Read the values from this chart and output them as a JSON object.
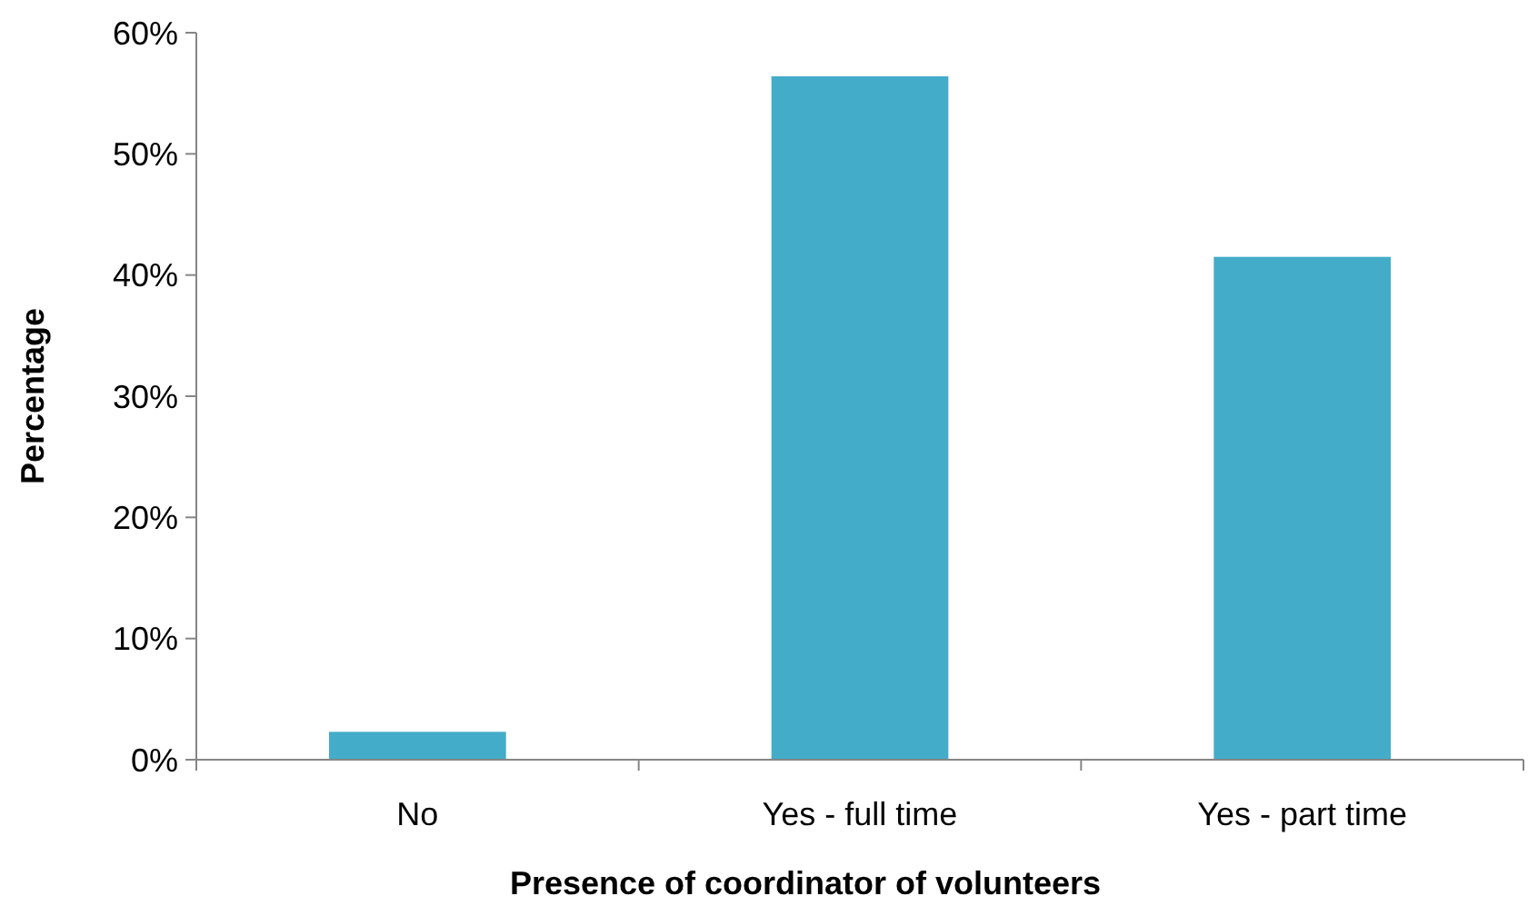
{
  "chart_data": {
    "type": "bar",
    "xlabel": "Presence of coordinator  of volunteers",
    "ylabel": "Percentage",
    "categories": [
      "No",
      "Yes - full time",
      "Yes - part time"
    ],
    "values": [
      2.3,
      56.4,
      41.5
    ],
    "color": "#43acc9",
    "ylim": [
      0,
      60
    ],
    "yticks": [
      {
        "value": 0,
        "label": "0%"
      },
      {
        "value": 10,
        "label": "10%"
      },
      {
        "value": 20,
        "label": "20%"
      },
      {
        "value": 30,
        "label": "30%"
      },
      {
        "value": 40,
        "label": "40%"
      },
      {
        "value": 50,
        "label": "50%"
      },
      {
        "value": 60,
        "label": "60%"
      }
    ],
    "grid": false
  }
}
